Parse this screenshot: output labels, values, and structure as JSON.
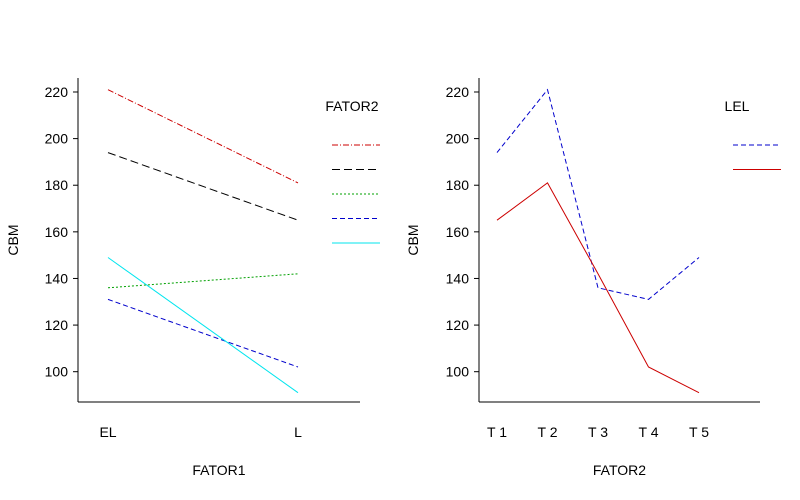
{
  "chart_data": [
    {
      "type": "line",
      "title": "",
      "xlabel": "FATOR1",
      "ylabel": "CBM",
      "categories": [
        "EL",
        "L"
      ],
      "yticks": [
        100,
        120,
        140,
        160,
        180,
        200,
        220
      ],
      "ylim": [
        87,
        226
      ],
      "legend_title": "FATOR2",
      "legend_position": "right",
      "series": [
        {
          "name": "",
          "values": [
            221,
            181
          ],
          "color": "#cc0000",
          "dash": "6,2,1,2"
        },
        {
          "name": "",
          "values": [
            194,
            165
          ],
          "color": "#000000",
          "dash": "8,4"
        },
        {
          "name": "",
          "values": [
            136,
            142
          ],
          "color": "#00a000",
          "dash": "2,2"
        },
        {
          "name": "",
          "values": [
            131,
            102
          ],
          "color": "#0000cc",
          "dash": "5,3"
        },
        {
          "name": "",
          "values": [
            149,
            91
          ],
          "color": "#00e5ee",
          "dash": ""
        }
      ]
    },
    {
      "type": "line",
      "title": "",
      "xlabel": "FATOR2",
      "ylabel": "CBM",
      "categories": [
        "T 1",
        "T 2",
        "T 3",
        "T 4",
        "T 5"
      ],
      "yticks": [
        100,
        120,
        140,
        160,
        180,
        200,
        220
      ],
      "ylim": [
        87,
        226
      ],
      "legend_title": "LEL",
      "legend_position": "right",
      "series": [
        {
          "name": "",
          "values": [
            194,
            221,
            136,
            131,
            149
          ],
          "color": "#0000cc",
          "dash": "5,3"
        },
        {
          "name": "",
          "values": [
            165,
            181,
            142,
            102,
            91
          ],
          "color": "#cc0000",
          "dash": ""
        }
      ]
    }
  ]
}
